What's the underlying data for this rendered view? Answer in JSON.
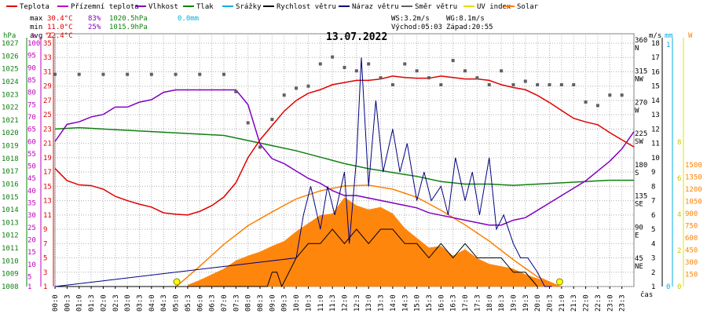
{
  "chart_data": {
    "type": "line",
    "title": "13.07.2022",
    "legend": [
      {
        "label": "Teplota",
        "color": "#e00000"
      },
      {
        "label": "Přízemní teplota",
        "color": "#c000c0"
      },
      {
        "label": "Vlhkost",
        "color": "#8000c0"
      },
      {
        "label": "Tlak",
        "color": "#108010"
      },
      {
        "label": "Srážky",
        "color": "#00b0e0"
      },
      {
        "label": "Rychlost větru",
        "color": "#000000"
      },
      {
        "label": "Náraz větru",
        "color": "#000080"
      },
      {
        "label": "Směr větru",
        "color": "#606060"
      },
      {
        "label": "UV index",
        "color": "#e0e000"
      },
      {
        "label": "Solar",
        "color": "#ff8000"
      }
    ],
    "stats": {
      "max": {
        "label": "max",
        "temp": "30.4°C",
        "hum": "83%",
        "press": "1020.5hPa",
        "rain": "0.0mm"
      },
      "min": {
        "label": "min",
        "temp": "11.0°C",
        "hum": "25%",
        "press": "1015.9hPa"
      },
      "avg": {
        "label": "avg",
        "temp": "22.4°C"
      }
    },
    "wind_info": {
      "ws": "WS:3.2m/s",
      "wg": "WG:8.1m/s",
      "sunrise": "Východ:05:03",
      "sunset": "Západ:20:55"
    },
    "axes": {
      "hpa": {
        "unit": "hPa",
        "ticks": [
          "1008",
          "1009",
          "1010",
          "1011",
          "1012",
          "1013",
          "1014",
          "1015",
          "1016",
          "1017",
          "1018",
          "1019",
          "1020",
          "1021",
          "1022",
          "1023",
          "1024",
          "1025",
          "1026",
          "1027"
        ]
      },
      "pct": {
        "unit": "%",
        "ticks": [
          "1",
          "5",
          "10",
          "15",
          "20",
          "25",
          "30",
          "35",
          "40",
          "45",
          "50",
          "55",
          "60",
          "65",
          "70",
          "75",
          "80",
          "85",
          "90",
          "95",
          "100"
        ]
      },
      "celsius": {
        "unit": "°C",
        "ticks": [
          "1",
          "3",
          "5",
          "7",
          "9",
          "11",
          "13",
          "15",
          "17",
          "19",
          "21",
          "23",
          "25",
          "27",
          "29",
          "31",
          "33",
          "35"
        ]
      },
      "ms": {
        "unit": "m/s",
        "ticks": [
          "1",
          "2",
          "3",
          "4",
          "5",
          "6",
          "7",
          "8",
          "9",
          "10",
          "11",
          "12",
          "13",
          "14",
          "15",
          "16",
          "17",
          "18"
        ]
      },
      "dir": {
        "ticks": [
          "45",
          "NE",
          "90",
          "E",
          "135",
          "SE",
          "180",
          "S",
          "225",
          "SW",
          "270",
          "W",
          "315",
          "NW",
          "360",
          "N"
        ]
      },
      "mm": {
        "unit": "mm",
        "ticks": [
          "0",
          "1"
        ]
      },
      "w": {
        "unit": "W",
        "ticks": [
          "150",
          "300",
          "450",
          "600",
          "750",
          "900",
          "1050",
          "1200",
          "1350",
          "1500"
        ]
      },
      "uv": {
        "ticks": [
          "0",
          "2",
          "4",
          "6",
          "8"
        ]
      },
      "time_label": "čas",
      "time_ticks": [
        "00:0",
        "00:3",
        "01:0",
        "01:3",
        "02:0",
        "02:3",
        "03:0",
        "03:3",
        "04:0",
        "04:3",
        "05:0",
        "05:3",
        "06:0",
        "06:3",
        "07:0",
        "07:3",
        "08:0",
        "08:3",
        "09:0",
        "09:3",
        "10:0",
        "10:3",
        "11:0",
        "11:3",
        "12:0",
        "12:3",
        "13:0",
        "13:3",
        "14:0",
        "14:3",
        "15:0",
        "15:3",
        "16:0",
        "16:3",
        "17:0",
        "17:3",
        "18:0",
        "18:3",
        "19:0",
        "19:3",
        "20:0",
        "20:3",
        "21:0",
        "21:3",
        "22:0",
        "22:3",
        "23:0",
        "23:3"
      ]
    },
    "series": {
      "temperature_c": {
        "x_hours": [
          0,
          0.5,
          1,
          1.5,
          2,
          2.5,
          3,
          3.5,
          4,
          4.5,
          5,
          5.5,
          6,
          6.5,
          7,
          7.5,
          8,
          8.5,
          9,
          9.5,
          10,
          10.5,
          11,
          11.5,
          12,
          12.5,
          13,
          13.5,
          14,
          14.5,
          15,
          15.5,
          16,
          16.5,
          17,
          17.5,
          18,
          18.5,
          19,
          19.5,
          20,
          20.5,
          21,
          21.5,
          22,
          22.5,
          23,
          23.5,
          24
        ],
        "values": [
          17.5,
          15.8,
          15.2,
          15.1,
          14.6,
          13.6,
          13.0,
          12.5,
          12.1,
          11.3,
          11.1,
          11.0,
          11.5,
          12.3,
          13.5,
          15.5,
          19.0,
          21.5,
          23.5,
          25.5,
          27.0,
          28.0,
          28.5,
          29.2,
          29.5,
          29.8,
          29.8,
          30.0,
          30.4,
          30.2,
          30.1,
          30.1,
          30.4,
          30.2,
          30.0,
          30.0,
          29.8,
          29.2,
          28.8,
          28.5,
          27.7,
          26.7,
          25.6,
          24.5,
          24.0,
          23.6,
          22.5,
          21.5,
          20.5
        ]
      },
      "humidity_pct": {
        "x_hours": [
          0,
          0.5,
          1,
          1.5,
          2,
          2.5,
          3,
          3.5,
          4,
          4.5,
          5,
          5.5,
          6,
          6.5,
          7,
          7.5,
          8,
          8.5,
          9,
          9.5,
          10,
          10.5,
          11,
          11.5,
          12,
          12.5,
          13,
          13.5,
          14,
          14.5,
          15,
          15.5,
          16,
          16.5,
          17,
          17.5,
          18,
          18.5,
          19,
          19.5,
          20,
          20.5,
          21,
          21.5,
          22,
          22.5,
          23,
          23.5,
          24
        ],
        "values": [
          60,
          67,
          68,
          70,
          71,
          74,
          74,
          76,
          77,
          80,
          81,
          81,
          81,
          81,
          81,
          81,
          75,
          59,
          53,
          51,
          48,
          45,
          43,
          40,
          38,
          38,
          37,
          36,
          35,
          34,
          33,
          31,
          30,
          29,
          28,
          27,
          26,
          26,
          28,
          29,
          32,
          35,
          38,
          41,
          44,
          48,
          52,
          57,
          64
        ]
      },
      "pressure_hpa": {
        "x_hours": [
          0,
          1,
          2,
          3,
          4,
          5,
          6,
          7,
          8,
          9,
          10,
          11,
          12,
          13,
          14,
          15,
          16,
          17,
          18,
          19,
          20,
          21,
          22,
          23,
          24
        ],
        "values": [
          1020.3,
          1020.4,
          1020.3,
          1020.2,
          1020.1,
          1020.0,
          1019.9,
          1019.8,
          1019.4,
          1019.0,
          1018.6,
          1018.1,
          1017.6,
          1017.2,
          1016.9,
          1016.6,
          1016.2,
          1016.0,
          1016.0,
          1015.9,
          1016.0,
          1016.1,
          1016.2,
          1016.3,
          1016.3
        ]
      },
      "wind_direction_deg": {
        "x_hours": [
          0,
          1,
          2,
          3,
          4,
          5,
          6,
          7,
          7.5,
          8,
          8.5,
          9,
          9.5,
          10,
          10.5,
          11,
          11.5,
          12,
          12.5,
          13,
          13.5,
          14,
          14.5,
          15,
          15.5,
          16,
          16.5,
          17,
          17.5,
          18,
          18.5,
          19,
          19.5,
          20,
          20.5,
          21,
          21.5,
          22,
          22.5,
          23,
          23.5
        ],
        "values": [
          315,
          315,
          315,
          315,
          315,
          315,
          315,
          315,
          290,
          245,
          210,
          250,
          285,
          295,
          298,
          330,
          340,
          325,
          320,
          330,
          310,
          300,
          330,
          320,
          310,
          300,
          335,
          320,
          310,
          300,
          320,
          300,
          305,
          300,
          300,
          300,
          300,
          275,
          270,
          285,
          285
        ]
      },
      "wind_speed_ms": {
        "x_hours": [
          0,
          8.8,
          9.0,
          9.2,
          9.4,
          10.0,
          10.5,
          11,
          11.5,
          12,
          12.5,
          13,
          13.5,
          14,
          14.5,
          15,
          15.5,
          16,
          16.5,
          17,
          17.5,
          18,
          18.5,
          19,
          19.5,
          20
        ],
        "values": [
          1,
          1,
          2,
          2,
          1,
          3,
          4,
          4,
          5,
          4,
          5,
          4,
          5,
          5,
          4,
          4,
          3,
          4,
          3,
          4,
          3,
          3,
          3,
          2,
          2,
          1
        ]
      },
      "wind_gust_ms": {
        "x_hours": [
          0,
          10.0,
          10.3,
          10.6,
          11,
          11.3,
          11.6,
          12,
          12.2,
          12.5,
          12.7,
          13,
          13.3,
          13.6,
          14,
          14.3,
          14.6,
          15,
          15.3,
          15.6,
          16,
          16.3,
          16.6,
          17,
          17.3,
          17.6,
          18,
          18.3,
          18.6,
          19,
          19.3,
          19.6,
          20,
          20.3,
          20.6
        ],
        "values": [
          1,
          3,
          6,
          8,
          5,
          8,
          6,
          9,
          4,
          10,
          17,
          8,
          14,
          9,
          12,
          9,
          11,
          7,
          9,
          7,
          8,
          6,
          10,
          7,
          9,
          6,
          10,
          5,
          6,
          4,
          3,
          3,
          2,
          1,
          1
        ]
      },
      "solar_w": {
        "x_hours": [
          5.03,
          6,
          7,
          8,
          9,
          10,
          11,
          12,
          13,
          14,
          15,
          16,
          17,
          18,
          19,
          20,
          20.92
        ],
        "values": [
          0,
          250,
          520,
          750,
          920,
          1080,
          1180,
          1240,
          1250,
          1200,
          1100,
          940,
          760,
          560,
          330,
          120,
          0
        ]
      },
      "solar_measured_w": {
        "x_hours": [
          5.5,
          6,
          6.5,
          7,
          7.5,
          8,
          8.5,
          9,
          9.5,
          10,
          10.5,
          11,
          11.5,
          12,
          12.5,
          13,
          13.5,
          14,
          14.5,
          15,
          15.5,
          16,
          16.5,
          17,
          17.5,
          18,
          18.5,
          19,
          19.5,
          20,
          20.5,
          21
        ],
        "values": [
          20,
          80,
          150,
          220,
          320,
          380,
          430,
          500,
          560,
          680,
          780,
          880,
          900,
          1100,
          1000,
          950,
          980,
          900,
          720,
          600,
          480,
          500,
          380,
          460,
          350,
          280,
          250,
          220,
          150,
          100,
          60,
          0
        ]
      }
    },
    "markers": [
      {
        "label": "Východ",
        "time_hours": 5.05
      },
      {
        "label": "Západ",
        "time_hours": 20.92
      }
    ]
  }
}
